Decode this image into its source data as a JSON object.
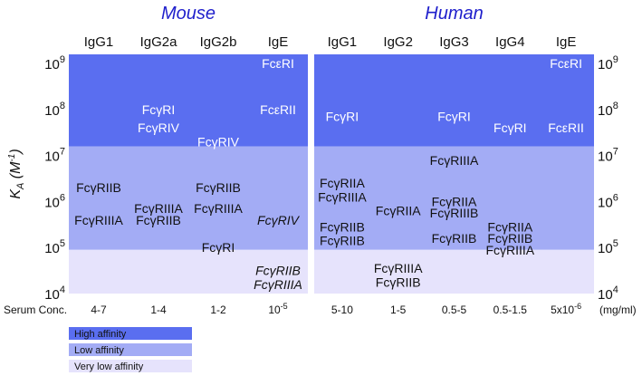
{
  "chart_data": {
    "type": "heatmap",
    "panels": [
      {
        "title": "Mouse",
        "columns": [
          "IgG1",
          "IgG2a",
          "IgG2b",
          "IgE"
        ],
        "serum_conc": [
          "4-7",
          "1-4",
          "1-2",
          "10-5"
        ],
        "receptors": [
          {
            "col": 0,
            "label": "FcγRIIB",
            "log_ka": 6.3
          },
          {
            "col": 0,
            "label": "FcγRIIIA",
            "log_ka": 5.6
          },
          {
            "col": 1,
            "label": "FcγRI",
            "log_ka": 8.0
          },
          {
            "col": 1,
            "label": "FcγRIV",
            "log_ka": 7.6
          },
          {
            "col": 1,
            "label": "FcγRIIIA",
            "log_ka": 5.85
          },
          {
            "col": 1,
            "label": "FcγRIIB",
            "log_ka": 5.6
          },
          {
            "col": 2,
            "label": "FcγRIV",
            "log_ka": 7.3
          },
          {
            "col": 2,
            "label": "FcγRIIB",
            "log_ka": 6.3
          },
          {
            "col": 2,
            "label": "FcγRIIIA",
            "log_ka": 5.85
          },
          {
            "col": 2,
            "label": "FcγRI",
            "log_ka": 5.0
          },
          {
            "col": 3,
            "label": "FcεRI",
            "log_ka": 9.0
          },
          {
            "col": 3,
            "label": "FcεRII",
            "log_ka": 8.0
          },
          {
            "col": 3,
            "label": "FcγRIV",
            "log_ka": 5.6,
            "italic": true
          },
          {
            "col": 3,
            "label": "FcγRIIB",
            "log_ka": 4.5,
            "italic": true
          },
          {
            "col": 3,
            "label": "FcγRIIIA",
            "log_ka": 4.2,
            "italic": true
          }
        ]
      },
      {
        "title": "Human",
        "columns": [
          "IgG1",
          "IgG2",
          "IgG3",
          "IgG4",
          "IgE"
        ],
        "serum_conc": [
          "5-10",
          "1-5",
          "0.5-5",
          "0.5-1.5",
          "5x10-6"
        ],
        "receptors": [
          {
            "col": 0,
            "label": "FcγRI",
            "log_ka": 7.85
          },
          {
            "col": 0,
            "label": "FcγRIIA",
            "log_ka": 6.4
          },
          {
            "col": 0,
            "label": "FcγRIIIA",
            "log_ka": 6.1
          },
          {
            "col": 0,
            "label": "FcγRIIB",
            "log_ka": 5.45
          },
          {
            "col": 0,
            "label": "FcγRIIB",
            "log_ka": 5.15
          },
          {
            "col": 1,
            "label": "FcγRIIA",
            "log_ka": 5.8
          },
          {
            "col": 1,
            "label": "FcγRIIIA",
            "log_ka": 4.55
          },
          {
            "col": 1,
            "label": "FcγRIIB",
            "log_ka": 4.25
          },
          {
            "col": 2,
            "label": "FcγRI",
            "log_ka": 7.85
          },
          {
            "col": 2,
            "label": "FcγRIIIA",
            "log_ka": 6.9
          },
          {
            "col": 2,
            "label": "FcγRIIA",
            "log_ka": 6.0
          },
          {
            "col": 2,
            "label": "FcγRIIIB",
            "log_ka": 5.75
          },
          {
            "col": 2,
            "label": "FcγRIIB",
            "log_ka": 5.2
          },
          {
            "col": 3,
            "label": "FcγRI",
            "log_ka": 7.6
          },
          {
            "col": 3,
            "label": "FcγRIIA",
            "log_ka": 5.45
          },
          {
            "col": 3,
            "label": "FcγRIIB",
            "log_ka": 5.2
          },
          {
            "col": 3,
            "label": "FcγRIIIA",
            "log_ka": 4.95
          },
          {
            "col": 4,
            "label": "FcεRI",
            "log_ka": 9.0
          },
          {
            "col": 4,
            "label": "FcεRII",
            "log_ka": 7.6
          }
        ]
      }
    ],
    "yaxis": {
      "label": "K_A (M-1)",
      "scale": "log",
      "ticks": [
        4,
        5,
        6,
        7,
        8,
        9
      ],
      "tick_prefix": "10",
      "range": [
        4,
        9.2
      ]
    },
    "bands": [
      {
        "name": "High affinity",
        "from": 7.2,
        "to": 9.2,
        "color": "#5a6ef0"
      },
      {
        "name": "Low affinity",
        "from": 4.95,
        "to": 7.2,
        "color": "#a3acf5"
      },
      {
        "name": "Very low affinity",
        "from": 4,
        "to": 4.95,
        "color": "#e6e3fc"
      }
    ],
    "serum_label": "Serum Conc.",
    "serum_unit": "(mg/ml)",
    "legend": [
      "High affinity",
      "Low affinity",
      "Very low affinity"
    ],
    "colors": {
      "title": "#1f1fcc",
      "text_on_dark": "#ffffff",
      "text_on_light": "#111111"
    }
  }
}
